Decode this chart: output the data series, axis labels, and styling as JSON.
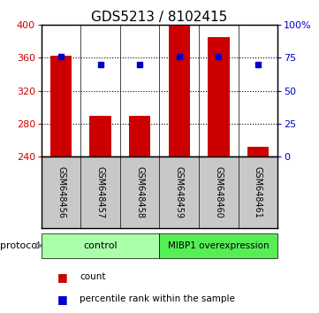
{
  "title": "GDS5213 / 8102415",
  "samples": [
    "GSM648456",
    "GSM648457",
    "GSM648458",
    "GSM648459",
    "GSM648460",
    "GSM648461"
  ],
  "counts": [
    363,
    290,
    290,
    400,
    385,
    252
  ],
  "percentile_ranks": [
    76,
    70,
    70,
    76,
    76,
    70
  ],
  "bar_color": "#cc0000",
  "dot_color": "#0000cc",
  "ylim_left": [
    240,
    400
  ],
  "ylim_right": [
    0,
    100
  ],
  "yticks_left": [
    240,
    280,
    320,
    360,
    400
  ],
  "yticks_right": [
    0,
    25,
    50,
    75,
    100
  ],
  "grid_values": [
    280,
    320,
    360
  ],
  "bar_width": 0.55,
  "groups": [
    {
      "label": "control",
      "indices": [
        0,
        1,
        2
      ],
      "color": "#aaffaa"
    },
    {
      "label": "MIBP1 overexpression",
      "indices": [
        3,
        4,
        5
      ],
      "color": "#55ee55"
    }
  ],
  "protocol_label": "protocol",
  "legend_items": [
    {
      "label": "count",
      "color": "#cc0000"
    },
    {
      "label": "percentile rank within the sample",
      "color": "#0000cc"
    }
  ],
  "background_color": "#ffffff",
  "tick_area_color": "#c8c8c8",
  "title_fontsize": 11,
  "axis_fontsize": 8,
  "sample_fontsize": 7
}
